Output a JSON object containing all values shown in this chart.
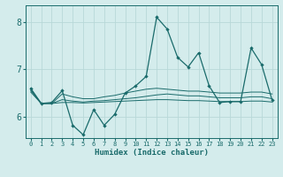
{
  "xlabel": "Humidex (Indice chaleur)",
  "ylabel": "",
  "bg_color": "#d4ecec",
  "grid_color": "#b8d8d8",
  "line_color": "#1a6b6b",
  "xlim": [
    -0.5,
    23.5
  ],
  "ylim": [
    5.55,
    8.35
  ],
  "yticks": [
    6,
    7,
    8
  ],
  "xticks": [
    0,
    1,
    2,
    3,
    4,
    5,
    6,
    7,
    8,
    9,
    10,
    11,
    12,
    13,
    14,
    15,
    16,
    17,
    18,
    19,
    20,
    21,
    22,
    23
  ],
  "main_series": [
    6.6,
    6.28,
    6.3,
    6.55,
    5.82,
    5.62,
    6.15,
    5.82,
    6.05,
    6.5,
    6.65,
    6.85,
    8.1,
    7.85,
    7.25,
    7.05,
    7.35,
    6.65,
    6.3,
    6.32,
    6.32,
    7.45,
    7.1,
    6.35
  ],
  "line2": [
    6.58,
    6.28,
    6.28,
    6.48,
    6.42,
    6.38,
    6.38,
    6.42,
    6.45,
    6.5,
    6.54,
    6.58,
    6.6,
    6.58,
    6.56,
    6.54,
    6.54,
    6.52,
    6.5,
    6.5,
    6.5,
    6.52,
    6.52,
    6.48
  ],
  "line3": [
    6.55,
    6.28,
    6.28,
    6.36,
    6.33,
    6.31,
    6.33,
    6.34,
    6.36,
    6.38,
    6.4,
    6.43,
    6.46,
    6.48,
    6.46,
    6.44,
    6.44,
    6.42,
    6.4,
    6.4,
    6.4,
    6.42,
    6.42,
    6.38
  ],
  "line4": [
    6.52,
    6.28,
    6.28,
    6.3,
    6.3,
    6.29,
    6.3,
    6.31,
    6.32,
    6.33,
    6.34,
    6.35,
    6.36,
    6.36,
    6.35,
    6.34,
    6.34,
    6.33,
    6.32,
    6.32,
    6.32,
    6.33,
    6.33,
    6.31
  ]
}
